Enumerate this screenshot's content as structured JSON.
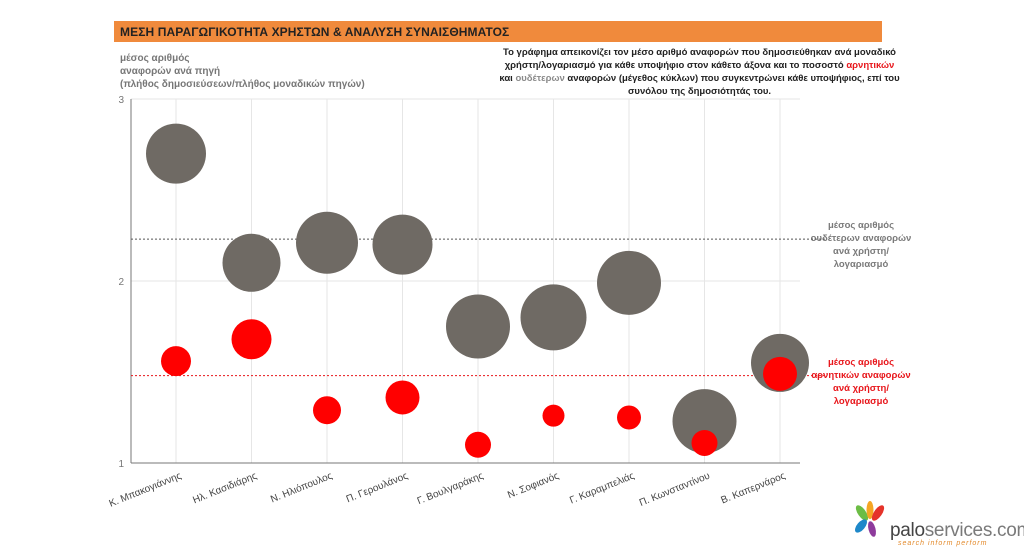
{
  "header": {
    "title": "ΜΕΣΗ ΠΑΡΑΓΩΓΙΚΟΤΗΤΑ ΧΡΗΣΤΩΝ & ΑΝΑΛΥΣΗ ΣΥΝΑΙΣΘΗΜΑΤΟΣ"
  },
  "y_caption": {
    "line1": "μέσος αριθμός",
    "line2": "αναφορών ανά πηγή",
    "line3": "(πλήθος δημοσιεύσεων/πλήθος μοναδικών πηγών)"
  },
  "description": {
    "part1": "Το γράφημα απεικονίζει τον μέσο αριθμό αναφορών που δημοσιεύθηκαν ανά μοναδικό χρήστη/λογαριασμό για κάθε υποψήφιο στον κάθετο άξονα και το ποσοστό ",
    "negative_word": "αρνητικών",
    "part2": " και ",
    "neutral_word": "ουδέτερων",
    "part3": " αναφορών (μέγεθος κύκλων) που συγκεντρώνει κάθε υποψήφιος, επί του συνόλου της δημοσιότητάς του."
  },
  "reference_labels": {
    "neutral": "μέσος αριθμός ουδέτερων αναφορών ανά χρήστη/ λογαριασμό",
    "negative": "μέσος αριθμός αρνητικών αναφορών ανά χρήστη/ λογαριασμό"
  },
  "logo": {
    "brand_a": "palo",
    "brand_b": "services",
    "brand_c": ".com",
    "tagline": "search inform perform"
  },
  "colors": {
    "title_bar": "#f08a3c",
    "neutral": "#6f6a64",
    "negative": "#ff0000",
    "negative_text": "#e8161b"
  },
  "chart_data": {
    "type": "bubble",
    "categories": [
      "Κ. Μπακογιάννης",
      "Ηλ. Κασιδιάρης",
      "Ν. Ηλιόπουλος",
      "Π. Γερουλάνος",
      "Γ. Βουλγαράκης",
      "Ν. Σοφιανός",
      "Γ. Καραμπελιάς",
      "Π. Κωνσταντίνου",
      "Β. Καπερνάρος"
    ],
    "ylim": [
      1,
      3
    ],
    "yticks": [
      1,
      2,
      3
    ],
    "grid": true,
    "series": [
      {
        "key": "neutral",
        "values": [
          2.7,
          2.1,
          2.21,
          2.2,
          1.75,
          1.8,
          1.99,
          1.23,
          1.55
        ],
        "sizes": [
          30,
          29,
          31,
          30,
          32,
          33,
          32,
          32,
          29
        ]
      },
      {
        "key": "negative",
        "values": [
          1.56,
          1.68,
          1.29,
          1.36,
          1.1,
          1.26,
          1.25,
          1.11,
          1.49
        ],
        "sizes": [
          15,
          20,
          14,
          17,
          13,
          11,
          12,
          13,
          17
        ]
      }
    ],
    "reference_lines": [
      {
        "key": "neutral",
        "value": 2.23
      },
      {
        "key": "negative",
        "value": 1.48
      }
    ]
  }
}
